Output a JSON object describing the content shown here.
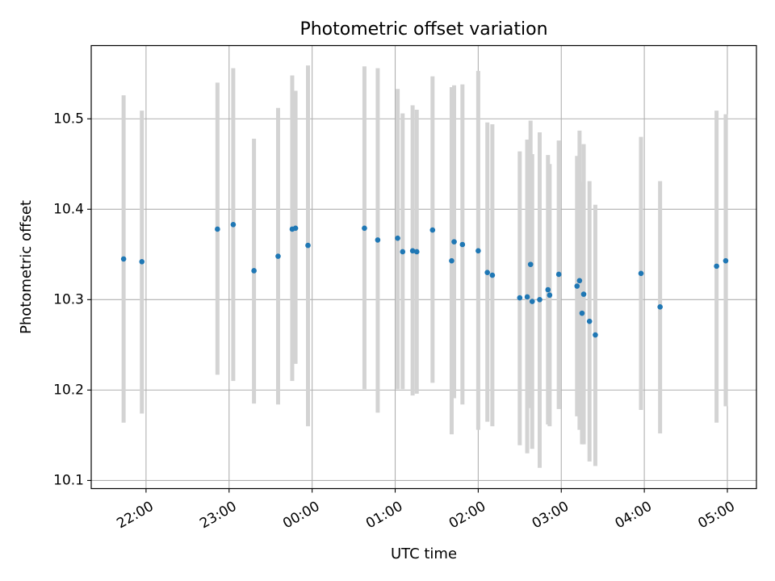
{
  "chart_data": {
    "type": "scatter",
    "title": "Photometric offset variation",
    "xlabel": "UTC time",
    "ylabel": "Photometric offset",
    "x_unit": "hours UTC (values >= 24 fall after midnight)",
    "xlim": [
      21.34,
      29.35
    ],
    "ylim": [
      10.091,
      10.581
    ],
    "grid": true,
    "x_ticks": [
      {
        "value": 22,
        "label": "22:00"
      },
      {
        "value": 23,
        "label": "23:00"
      },
      {
        "value": 24,
        "label": "00:00"
      },
      {
        "value": 25,
        "label": "01:00"
      },
      {
        "value": 26,
        "label": "02:00"
      },
      {
        "value": 27,
        "label": "03:00"
      },
      {
        "value": 28,
        "label": "04:00"
      },
      {
        "value": 29,
        "label": "05:00"
      }
    ],
    "y_ticks": [
      {
        "value": 10.1,
        "label": "10.1"
      },
      {
        "value": 10.2,
        "label": "10.2"
      },
      {
        "value": 10.3,
        "label": "10.3"
      },
      {
        "value": 10.4,
        "label": "10.4"
      },
      {
        "value": 10.5,
        "label": "10.5"
      }
    ],
    "point_color": "#1f77b4",
    "errorbar_color": "#d3d3d3",
    "points": [
      {
        "x": 21.73,
        "y": 10.345,
        "err_low": 10.164,
        "err_high": 10.526
      },
      {
        "x": 21.95,
        "y": 10.342,
        "err_low": 10.174,
        "err_high": 10.509
      },
      {
        "x": 22.86,
        "y": 10.378,
        "err_low": 10.217,
        "err_high": 10.54
      },
      {
        "x": 23.05,
        "y": 10.383,
        "err_low": 10.21,
        "err_high": 10.556
      },
      {
        "x": 23.3,
        "y": 10.332,
        "err_low": 10.185,
        "err_high": 10.478
      },
      {
        "x": 23.59,
        "y": 10.348,
        "err_low": 10.184,
        "err_high": 10.512
      },
      {
        "x": 23.76,
        "y": 10.378,
        "err_low": 10.21,
        "err_high": 10.548
      },
      {
        "x": 23.8,
        "y": 10.379,
        "err_low": 10.229,
        "err_high": 10.531
      },
      {
        "x": 23.95,
        "y": 10.36,
        "err_low": 10.16,
        "err_high": 10.559
      },
      {
        "x": 24.63,
        "y": 10.379,
        "err_low": 10.201,
        "err_high": 10.558
      },
      {
        "x": 24.79,
        "y": 10.366,
        "err_low": 10.175,
        "err_high": 10.556
      },
      {
        "x": 25.03,
        "y": 10.368,
        "err_low": 10.201,
        "err_high": 10.533
      },
      {
        "x": 25.09,
        "y": 10.353,
        "err_low": 10.201,
        "err_high": 10.506
      },
      {
        "x": 25.21,
        "y": 10.354,
        "err_low": 10.194,
        "err_high": 10.515
      },
      {
        "x": 25.26,
        "y": 10.353,
        "err_low": 10.196,
        "err_high": 10.51
      },
      {
        "x": 25.45,
        "y": 10.377,
        "err_low": 10.208,
        "err_high": 10.547
      },
      {
        "x": 25.68,
        "y": 10.343,
        "err_low": 10.151,
        "err_high": 10.535
      },
      {
        "x": 25.71,
        "y": 10.364,
        "err_low": 10.191,
        "err_high": 10.537
      },
      {
        "x": 25.81,
        "y": 10.361,
        "err_low": 10.184,
        "err_high": 10.538
      },
      {
        "x": 26.0,
        "y": 10.354,
        "err_low": 10.156,
        "err_high": 10.553
      },
      {
        "x": 26.11,
        "y": 10.33,
        "err_low": 10.165,
        "err_high": 10.496
      },
      {
        "x": 26.17,
        "y": 10.327,
        "err_low": 10.16,
        "err_high": 10.494
      },
      {
        "x": 26.5,
        "y": 10.302,
        "err_low": 10.139,
        "err_high": 10.464
      },
      {
        "x": 26.59,
        "y": 10.303,
        "err_low": 10.13,
        "err_high": 10.477
      },
      {
        "x": 26.63,
        "y": 10.339,
        "err_low": 10.18,
        "err_high": 10.498
      },
      {
        "x": 26.65,
        "y": 10.298,
        "err_low": 10.135,
        "err_high": 10.461
      },
      {
        "x": 26.74,
        "y": 10.3,
        "err_low": 10.114,
        "err_high": 10.485
      },
      {
        "x": 26.84,
        "y": 10.311,
        "err_low": 10.162,
        "err_high": 10.46
      },
      {
        "x": 26.86,
        "y": 10.305,
        "err_low": 10.16,
        "err_high": 10.45
      },
      {
        "x": 26.97,
        "y": 10.328,
        "err_low": 10.179,
        "err_high": 10.476
      },
      {
        "x": 27.19,
        "y": 10.315,
        "err_low": 10.171,
        "err_high": 10.459
      },
      {
        "x": 27.22,
        "y": 10.321,
        "err_low": 10.156,
        "err_high": 10.487
      },
      {
        "x": 27.25,
        "y": 10.285,
        "err_low": 10.14,
        "err_high": 10.43
      },
      {
        "x": 27.27,
        "y": 10.306,
        "err_low": 10.14,
        "err_high": 10.472
      },
      {
        "x": 27.34,
        "y": 10.276,
        "err_low": 10.121,
        "err_high": 10.431
      },
      {
        "x": 27.41,
        "y": 10.261,
        "err_low": 10.116,
        "err_high": 10.405
      },
      {
        "x": 27.96,
        "y": 10.329,
        "err_low": 10.178,
        "err_high": 10.48
      },
      {
        "x": 28.19,
        "y": 10.292,
        "err_low": 10.152,
        "err_high": 10.431
      },
      {
        "x": 28.87,
        "y": 10.337,
        "err_low": 10.164,
        "err_high": 10.509
      },
      {
        "x": 28.98,
        "y": 10.343,
        "err_low": 10.182,
        "err_high": 10.505
      }
    ]
  }
}
